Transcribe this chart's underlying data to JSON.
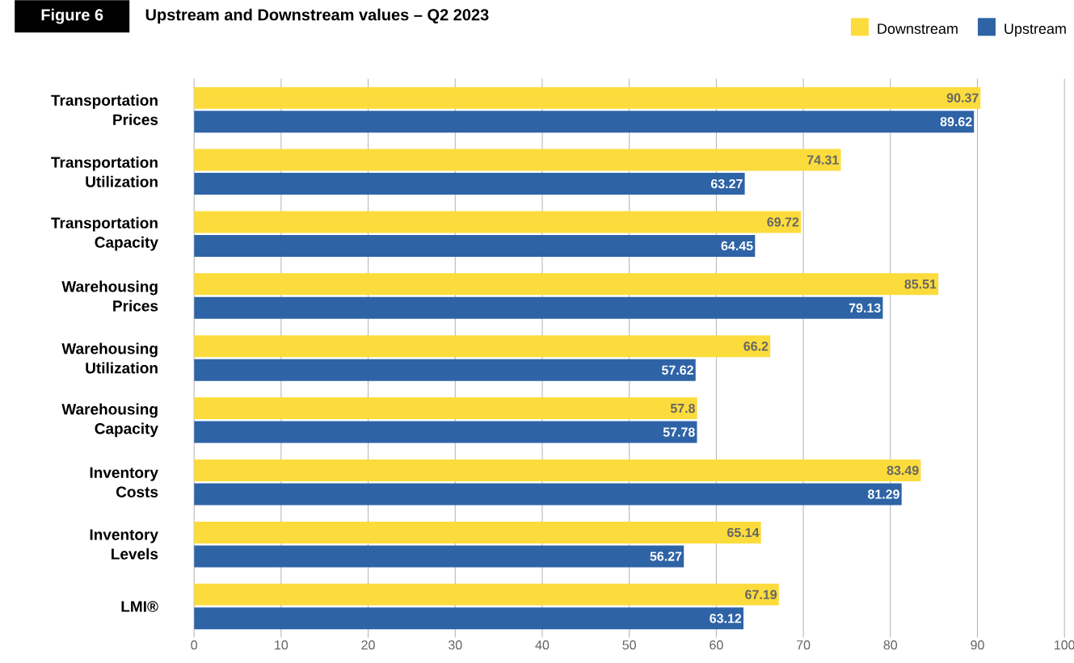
{
  "chart_data": {
    "type": "bar",
    "orientation": "horizontal",
    "title": "Upstream and Downstream values – Q2 2023",
    "annotations": [
      "Figure 6"
    ],
    "categories": [
      "Transportation Prices",
      "Transportation Utilization",
      "Transportation Capacity",
      "Warehousing Prices",
      "Warehousing Utilization",
      "Warehousing Capacity",
      "Inventory Costs",
      "Inventory Levels",
      "LMI®"
    ],
    "series": [
      {
        "name": "Downstream",
        "color": "#fcdc3c",
        "values": [
          90.37,
          74.31,
          69.72,
          85.51,
          66.2,
          57.8,
          83.49,
          65.14,
          67.19
        ]
      },
      {
        "name": "Upstream",
        "color": "#2e63a6",
        "values": [
          89.62,
          63.27,
          64.45,
          79.13,
          57.62,
          57.78,
          81.29,
          56.27,
          63.12
        ]
      }
    ],
    "xlim": [
      0,
      100
    ],
    "xticks": [
      0,
      10,
      20,
      30,
      40,
      50,
      60,
      70,
      80,
      90,
      100
    ],
    "grid": "x",
    "legend": "top right",
    "data_labels": true
  }
}
